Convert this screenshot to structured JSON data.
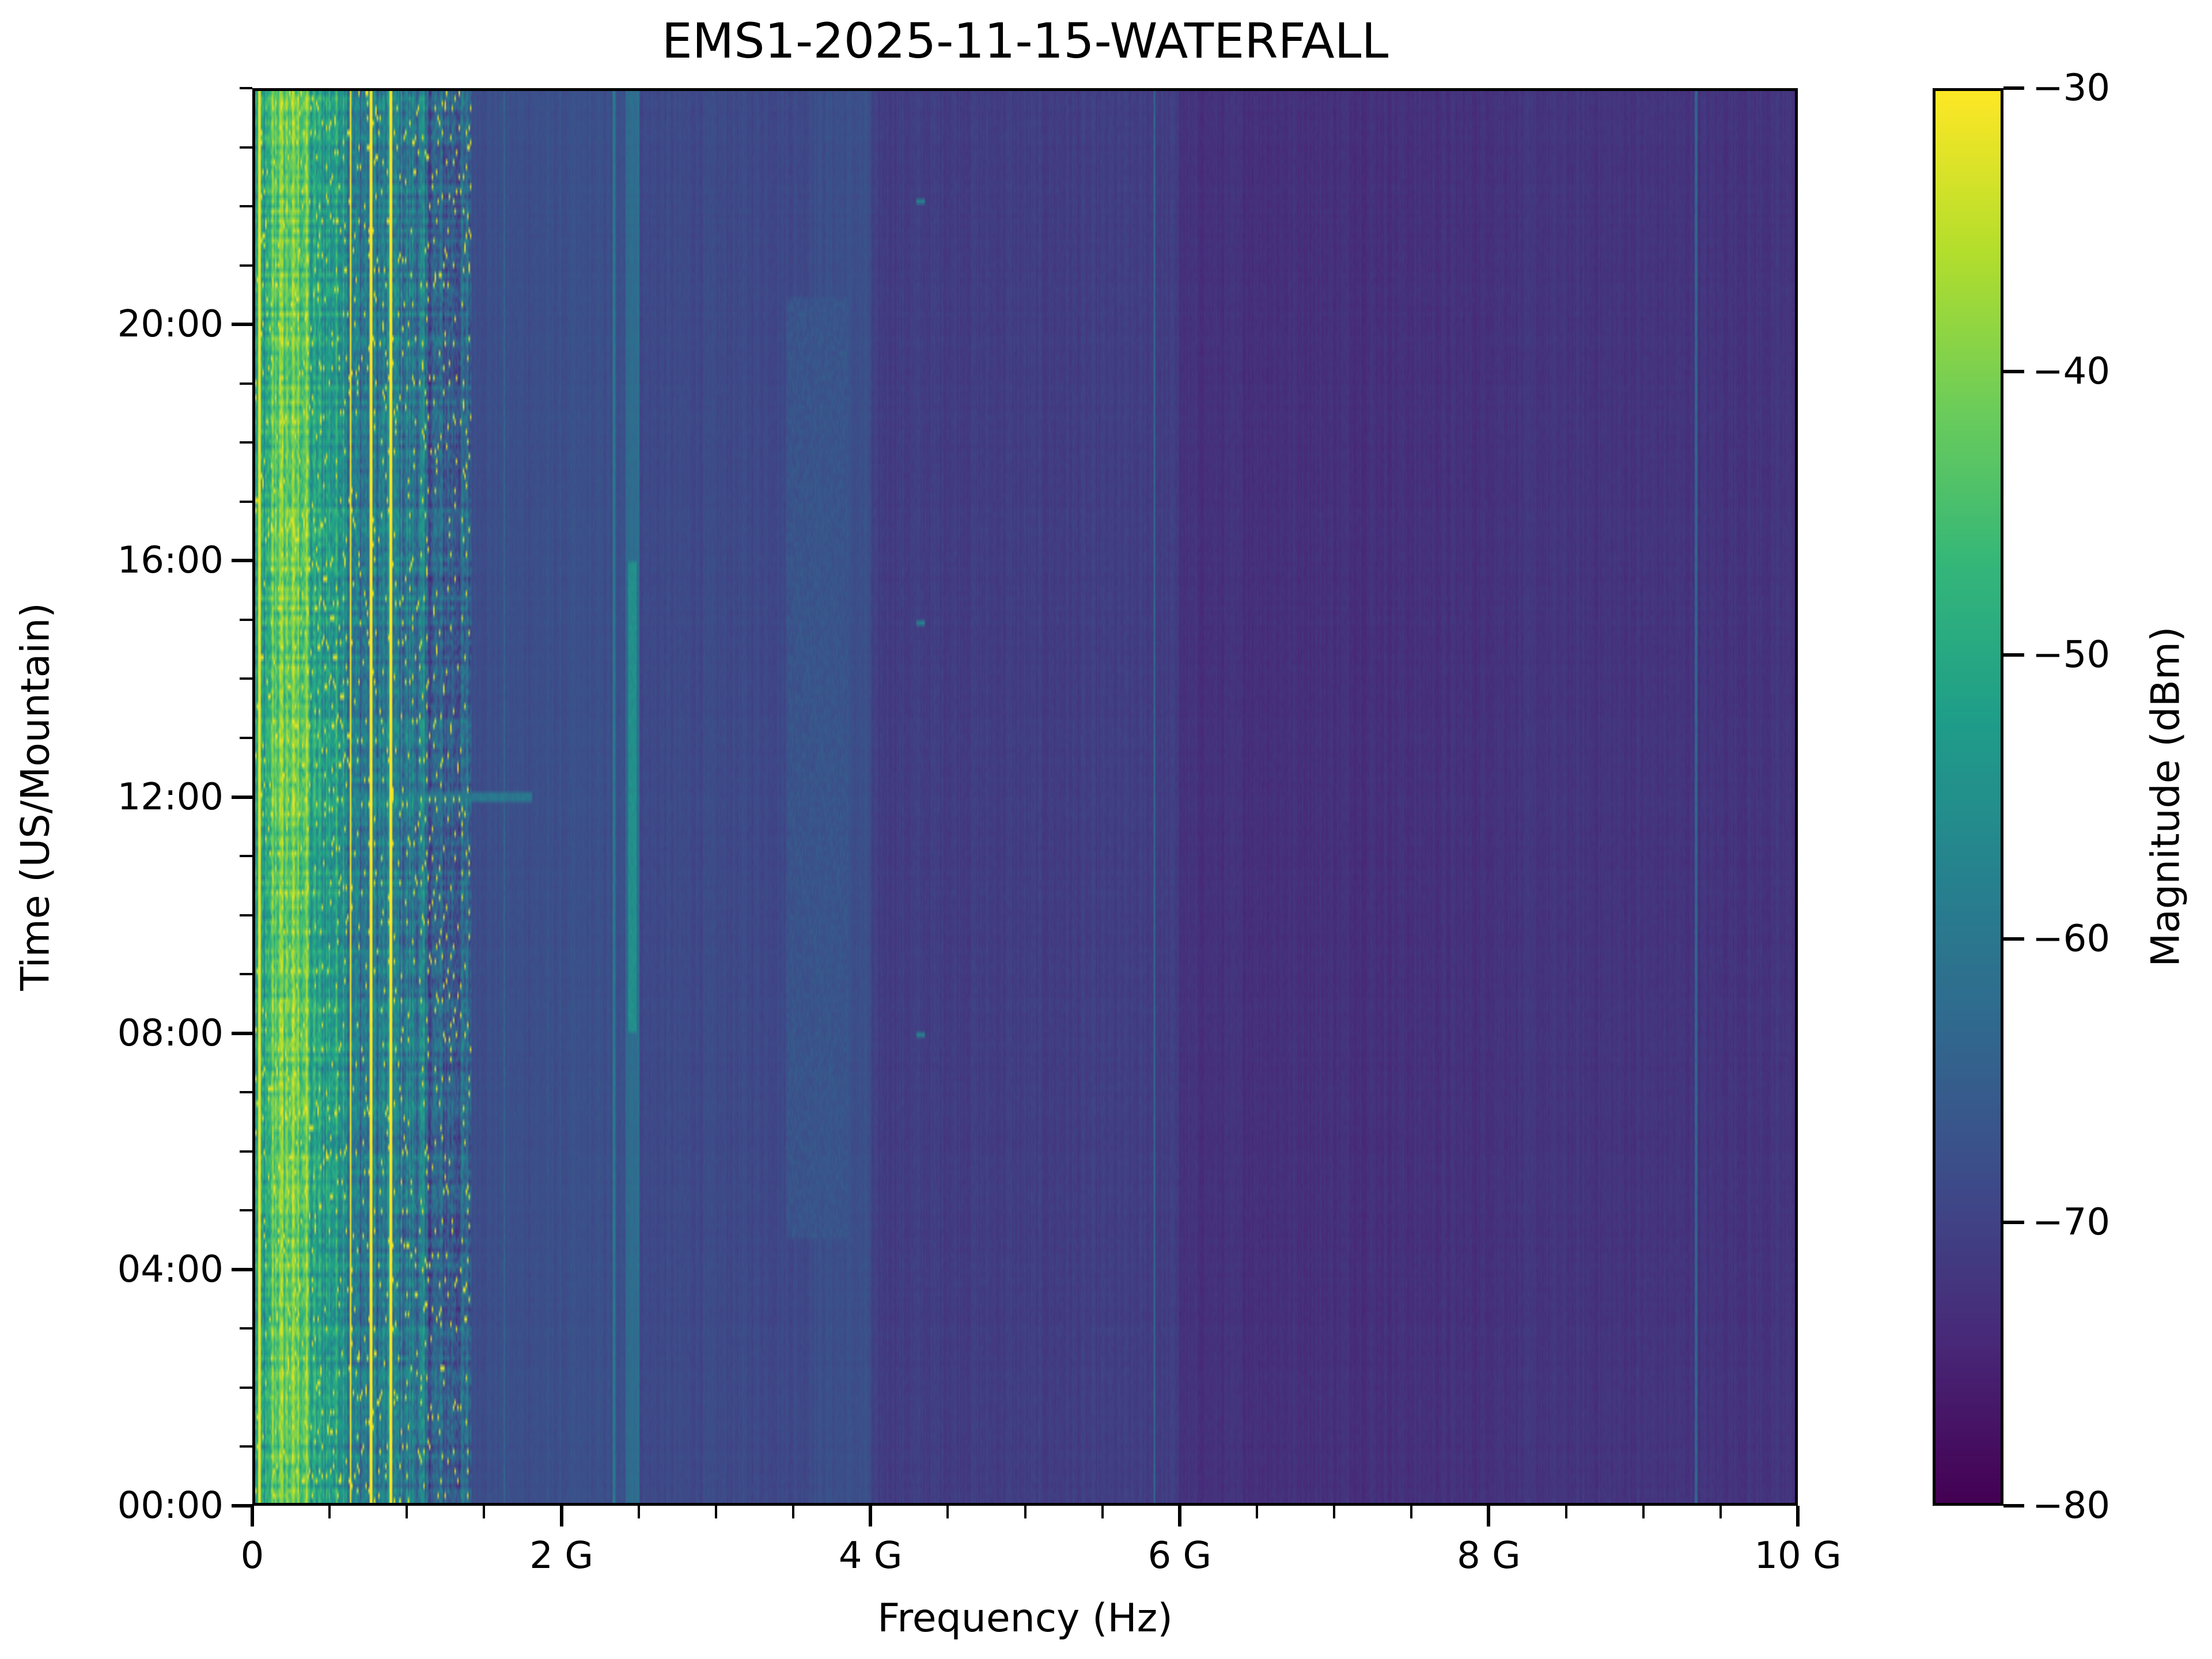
{
  "chart_data": {
    "type": "heatmap",
    "title": "EMS1-2025-11-15-WATERFALL",
    "xlabel": "Frequency (Hz)",
    "ylabel": "Time (US/Mountain)",
    "xlim_hz": [
      0,
      10000000000
    ],
    "ylim_hours": [
      0,
      24
    ],
    "x_ticks": [
      {
        "value": 0,
        "label": "0"
      },
      {
        "value": 2000000000.0,
        "label": "2 G"
      },
      {
        "value": 4000000000.0,
        "label": "4 G"
      },
      {
        "value": 6000000000.0,
        "label": "6 G"
      },
      {
        "value": 8000000000.0,
        "label": "8 G"
      },
      {
        "value": 10000000000.0,
        "label": "10 G"
      }
    ],
    "x_minor_step_hz": 500000000,
    "y_ticks": [
      {
        "value": 0,
        "label": "00:00"
      },
      {
        "value": 4,
        "label": "04:00"
      },
      {
        "value": 8,
        "label": "08:00"
      },
      {
        "value": 12,
        "label": "12:00"
      },
      {
        "value": 16,
        "label": "16:00"
      },
      {
        "value": 20,
        "label": "20:00"
      }
    ],
    "y_minor_step_hours": 1,
    "colorbar": {
      "label": "Magnitude (dBm)",
      "colormap": "viridis",
      "range": [
        -80,
        -30
      ],
      "ticks": [
        {
          "value": -30,
          "label": "−30"
        },
        {
          "value": -40,
          "label": "−40"
        },
        {
          "value": -50,
          "label": "−50"
        },
        {
          "value": -60,
          "label": "−60"
        },
        {
          "value": -70,
          "label": "−70"
        },
        {
          "value": -80,
          "label": "−80"
        }
      ]
    },
    "background_level_dbm_by_band": [
      {
        "f_start_ghz": 0.0,
        "f_end_ghz": 0.1,
        "dbm": -52
      },
      {
        "f_start_ghz": 0.1,
        "f_end_ghz": 0.35,
        "dbm": -42
      },
      {
        "f_start_ghz": 0.35,
        "f_end_ghz": 0.6,
        "dbm": -52
      },
      {
        "f_start_ghz": 0.6,
        "f_end_ghz": 1.1,
        "dbm": -60
      },
      {
        "f_start_ghz": 1.1,
        "f_end_ghz": 1.4,
        "dbm": -65
      },
      {
        "f_start_ghz": 1.4,
        "f_end_ghz": 2.4,
        "dbm": -68
      },
      {
        "f_start_ghz": 2.4,
        "f_end_ghz": 2.5,
        "dbm": -62
      },
      {
        "f_start_ghz": 2.5,
        "f_end_ghz": 3.6,
        "dbm": -69
      },
      {
        "f_start_ghz": 3.6,
        "f_end_ghz": 4.0,
        "dbm": -68
      },
      {
        "f_start_ghz": 4.0,
        "f_end_ghz": 6.0,
        "dbm": -71
      },
      {
        "f_start_ghz": 6.0,
        "f_end_ghz": 8.0,
        "dbm": -73
      },
      {
        "f_start_ghz": 8.0,
        "f_end_ghz": 10.0,
        "dbm": -72.5
      }
    ],
    "persistent_signals": [
      {
        "f_ghz": 0.03,
        "dbm": -32
      },
      {
        "f_ghz": 0.62,
        "dbm": -30
      },
      {
        "f_ghz": 0.75,
        "dbm": -30
      },
      {
        "f_ghz": 0.88,
        "dbm": -30
      },
      {
        "f_ghz": 1.62,
        "dbm": -64
      },
      {
        "f_ghz": 2.33,
        "dbm": -60
      },
      {
        "f_ghz": 5.84,
        "dbm": -62
      },
      {
        "f_ghz": 9.36,
        "dbm": -64
      }
    ],
    "intermittent_signals": [
      {
        "f_ghz": 2.45,
        "t_start_h": 8,
        "t_end_h": 16,
        "dbm": -55
      },
      {
        "f_ghz": 3.65,
        "t_start_h": 4.5,
        "t_end_h": 20.5,
        "dbm": -67
      },
      {
        "f_ghz": 4.32,
        "t_start_h": 7.9,
        "t_end_h": 8.0,
        "dbm": -58
      },
      {
        "f_ghz": 4.32,
        "t_start_h": 14.9,
        "t_end_h": 15.0,
        "dbm": -58
      },
      {
        "f_ghz": 4.32,
        "t_start_h": 22.1,
        "t_end_h": 22.2,
        "dbm": -58
      },
      {
        "f_ghz": 1.2,
        "t_start_h": 11.9,
        "t_end_h": 12.05,
        "dbm": -60
      }
    ]
  }
}
